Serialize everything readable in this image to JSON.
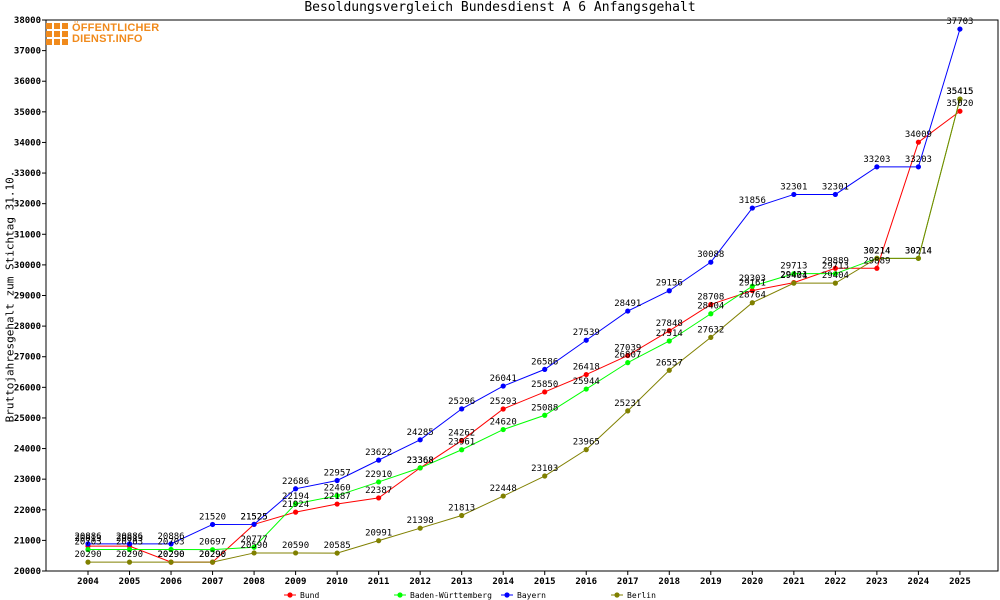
{
  "chart_data": {
    "type": "line",
    "title": "Besoldungsvergleich Bundesdienst A 6 Anfangsgehalt",
    "ylabel": "Bruttojahresgehalt zum Stichtag 31.10.",
    "xlabel": "",
    "ylim": [
      20000,
      38000
    ],
    "y_ticks": [
      20000,
      21000,
      22000,
      23000,
      24000,
      25000,
      26000,
      27000,
      28000,
      29000,
      30000,
      31000,
      32000,
      33000,
      34000,
      35000,
      36000,
      37000,
      38000
    ],
    "x": [
      "2004",
      "2005",
      "2006",
      "2007",
      "2008",
      "2009",
      "2010",
      "2011",
      "2012",
      "2013",
      "2014",
      "2015",
      "2016",
      "2017",
      "2018",
      "2019",
      "2020",
      "2021",
      "2022",
      "2023",
      "2024",
      "2025"
    ],
    "grid": false,
    "legend_position": "bottom",
    "series": [
      {
        "name": "Bund",
        "color": "#ff0000",
        "values": [
          20813,
          20813,
          20290,
          20290,
          21525,
          21924,
          22187,
          22387,
          23368,
          24262,
          25293,
          25850,
          26418,
          27039,
          27848,
          28708,
          29161,
          29421,
          29889,
          29889,
          34009,
          35020
        ]
      },
      {
        "name": "Baden-Württemberg",
        "color": "#00ff00",
        "values": [
          20703,
          20703,
          20703,
          20697,
          20777,
          22194,
          22460,
          22910,
          23368,
          23961,
          24620,
          25088,
          25944,
          26807,
          27514,
          28404,
          29303,
          29713,
          29713,
          30214,
          30214,
          35415
        ]
      },
      {
        "name": "Bayern",
        "color": "#0000ff",
        "values": [
          20886,
          20886,
          20886,
          21520,
          21525,
          22686,
          22957,
          23622,
          24285,
          25296,
          26041,
          26586,
          27539,
          28491,
          29156,
          30088,
          31856,
          32301,
          32301,
          33203,
          33203,
          37703
        ]
      },
      {
        "name": "Berlin",
        "color": "#808000",
        "values": [
          20290,
          20290,
          20290,
          20290,
          20590,
          20590,
          20585,
          20991,
          21398,
          21813,
          22448,
          23103,
          23965,
          25231,
          26557,
          27632,
          28764,
          29404,
          29404,
          30214,
          30214,
          35415
        ]
      }
    ]
  },
  "logo": {
    "line1": "ÖFFENTLICHER",
    "line2": "DIENST.INFO"
  }
}
